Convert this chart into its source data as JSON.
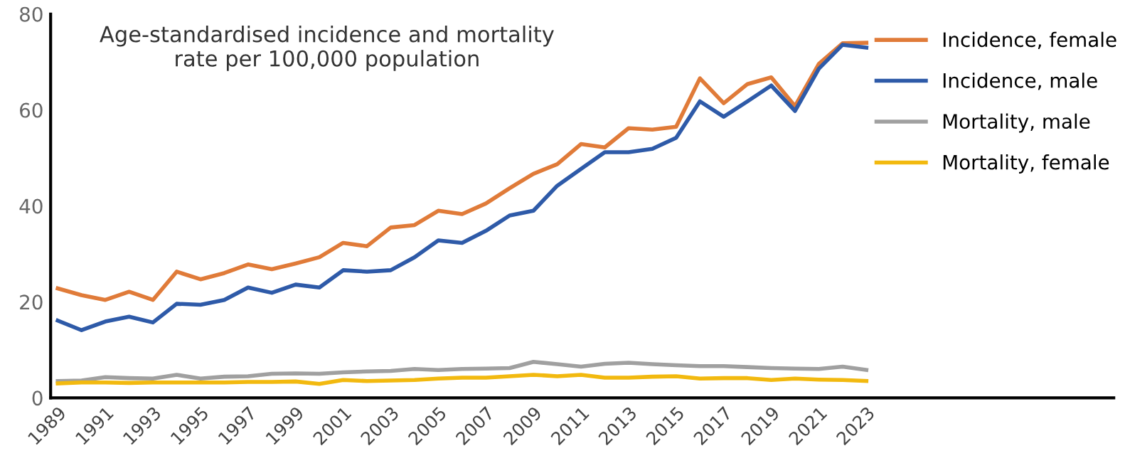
{
  "chart_data": {
    "type": "line",
    "title": "Age-standardised incidence and mortality\nrate per 100,000 population",
    "x": [
      1989,
      1990,
      1991,
      1992,
      1993,
      1994,
      1995,
      1996,
      1997,
      1998,
      1999,
      2000,
      2001,
      2002,
      2003,
      2004,
      2005,
      2006,
      2007,
      2008,
      2009,
      2010,
      2011,
      2012,
      2013,
      2014,
      2015,
      2016,
      2017,
      2018,
      2019,
      2020,
      2021,
      2022,
      2023
    ],
    "xlim": [
      1988.7,
      2033.4
    ],
    "xticks": [
      1989,
      1991,
      1993,
      1995,
      1997,
      1999,
      2001,
      2003,
      2005,
      2007,
      2009,
      2011,
      2013,
      2015,
      2017,
      2019,
      2021,
      2023
    ],
    "ylim": [
      0,
      80
    ],
    "yticks": [
      0,
      20,
      40,
      60,
      80
    ],
    "grid": false,
    "legend": "top right",
    "marker": "none",
    "line_style": "solid",
    "series": [
      {
        "name": "Incidence, female",
        "color": "#e07b39",
        "values": [
          22.8,
          21.4,
          20.4,
          22.1,
          20.4,
          26.3,
          24.7,
          26,
          27.8,
          26.8,
          28,
          29.3,
          32.3,
          31.6,
          35.5,
          36,
          39,
          38.3,
          40.5,
          43.7,
          46.7,
          48.7,
          52.9,
          52.2,
          56.2,
          55.9,
          56.5,
          66.6,
          61.4,
          65.4,
          66.8,
          60.8,
          69.6,
          73.9,
          74
        ]
      },
      {
        "name": "Incidence, male",
        "color": "#2e5aa8",
        "values": [
          16.1,
          14.1,
          15.9,
          16.9,
          15.7,
          19.6,
          19.4,
          20.4,
          23,
          21.9,
          23.6,
          23,
          26.6,
          26.3,
          26.6,
          29.3,
          32.8,
          32.3,
          34.8,
          38,
          39,
          44.2,
          47.7,
          51.2,
          51.2,
          51.9,
          54.2,
          61.8,
          58.6,
          61.8,
          65.1,
          59.8,
          68.6,
          73.6,
          73
        ]
      },
      {
        "name": "Mortality, male",
        "color": "#a0a0a0",
        "values": [
          3.5,
          3.6,
          4.3,
          4.1,
          4,
          4.8,
          4,
          4.4,
          4.5,
          5,
          5.1,
          5,
          5.3,
          5.5,
          5.6,
          6,
          5.8,
          6,
          6.1,
          6.2,
          7.5,
          7,
          6.5,
          7.1,
          7.3,
          7,
          6.8,
          6.6,
          6.6,
          6.4,
          6.2,
          6.1,
          6,
          6.5,
          5.8
        ]
      },
      {
        "name": "Mortality, female",
        "color": "#f2b90f",
        "values": [
          3,
          3.2,
          3.2,
          3.1,
          3.2,
          3.2,
          3.2,
          3.2,
          3.3,
          3.3,
          3.4,
          2.9,
          3.7,
          3.5,
          3.6,
          3.7,
          4,
          4.2,
          4.2,
          4.5,
          4.8,
          4.5,
          4.8,
          4.2,
          4.2,
          4.4,
          4.5,
          4,
          4.1,
          4.1,
          3.7,
          4,
          3.8,
          3.7,
          3.5
        ]
      }
    ]
  }
}
